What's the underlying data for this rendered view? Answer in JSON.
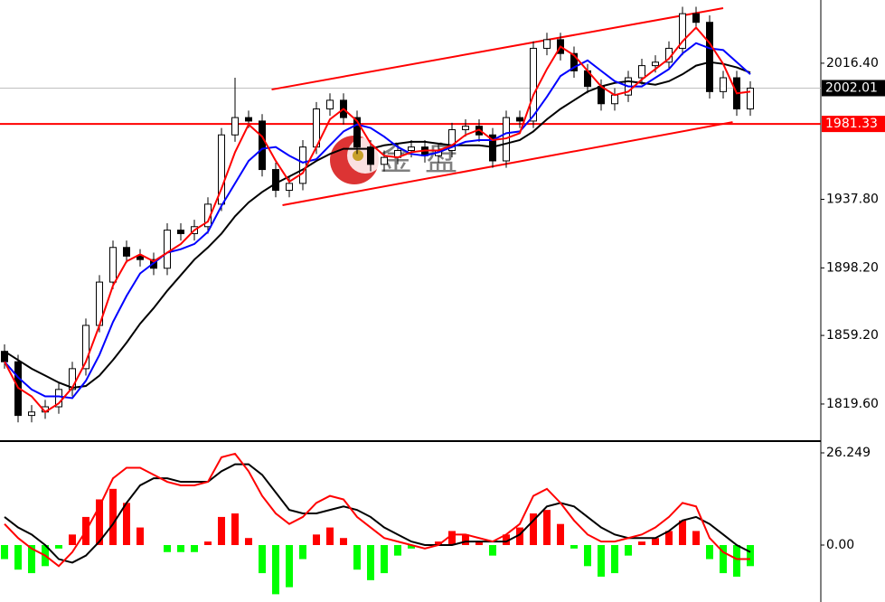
{
  "chart_data": [
    {
      "type": "candlestick",
      "open": [
        1850,
        1844,
        1813,
        1815,
        1818,
        1828,
        1840,
        1865,
        1890,
        1910,
        1905,
        1903,
        1898,
        1920,
        1918,
        1922,
        1935,
        1975,
        1985,
        1983,
        1955,
        1943,
        1947,
        1968,
        1990,
        1995,
        1985,
        1968,
        1958,
        1962,
        1966,
        1968,
        1963,
        1966,
        1978,
        1980,
        1975,
        1960,
        1985,
        1983,
        2025,
        2030,
        2022,
        2012,
        2003,
        1993,
        1998,
        2008,
        2015,
        2017,
        2025,
        2045,
        2040,
        2000,
        2008,
        1990
      ],
      "high": [
        1854,
        1848,
        1819,
        1822,
        1832,
        1844,
        1869,
        1894,
        1914,
        1914,
        1909,
        1907,
        1924,
        1924,
        1926,
        1939,
        1979,
        2008,
        1989,
        1987,
        1959,
        1951,
        1972,
        1994,
        1999,
        1999,
        1989,
        1972,
        1966,
        1970,
        1972,
        1972,
        1970,
        1982,
        1984,
        1984,
        1979,
        1989,
        1989,
        2029,
        2034,
        2034,
        2026,
        2016,
        2007,
        2002,
        2012,
        2019,
        2021,
        2029,
        2049,
        2049,
        2044,
        2012,
        2012,
        2006
      ],
      "low": [
        1840,
        1809,
        1809,
        1811,
        1814,
        1824,
        1836,
        1861,
        1886,
        1901,
        1899,
        1894,
        1894,
        1914,
        1914,
        1918,
        1931,
        1971,
        1979,
        1951,
        1939,
        1939,
        1943,
        1964,
        1986,
        1981,
        1964,
        1954,
        1954,
        1958,
        1962,
        1959,
        1959,
        1962,
        1974,
        1971,
        1956,
        1956,
        1979,
        1979,
        2021,
        2018,
        2008,
        1999,
        1989,
        1989,
        1994,
        2004,
        2011,
        2013,
        2021,
        2036,
        1996,
        1996,
        1986,
        1986
      ],
      "close": [
        1844,
        1813,
        1815,
        1818,
        1828,
        1840,
        1865,
        1890,
        1910,
        1905,
        1903,
        1898,
        1920,
        1918,
        1922,
        1935,
        1975,
        1985,
        1983,
        1955,
        1943,
        1947,
        1968,
        1990,
        1995,
        1985,
        1968,
        1958,
        1962,
        1966,
        1968,
        1963,
        1966,
        1978,
        1980,
        1975,
        1960,
        1985,
        1983,
        2025,
        2030,
        2022,
        2012,
        2003,
        1993,
        1998,
        2008,
        2015,
        2017,
        2025,
        2045,
        2040,
        2000,
        2008,
        1990,
        2002
      ],
      "up_color": "#ffffff",
      "down_color": "#000000",
      "series": [
        {
          "color": "#ff0000",
          "values": [
            1844,
            1829,
            1824,
            1815,
            1820,
            1829,
            1844,
            1865,
            1888,
            1902,
            1906,
            1902,
            1907,
            1912,
            1920,
            1925,
            1944,
            1965,
            1981,
            1974,
            1960,
            1948,
            1953,
            1968,
            1984,
            1990,
            1983,
            1970,
            1963,
            1962,
            1965,
            1966,
            1966,
            1969,
            1975,
            1978,
            1972,
            1973,
            1976,
            1998,
            2013,
            2026,
            2021,
            2012,
            2003,
            1998,
            2000,
            2007,
            2013,
            2019,
            2029,
            2037,
            2028,
            2016,
            1999,
            2000
          ]
        },
        {
          "color": "#0000ff",
          "values": [
            1844,
            1835,
            1828,
            1824,
            1824,
            1823,
            1833,
            1848,
            1867,
            1882,
            1895,
            1901,
            1907,
            1909,
            1912,
            1919,
            1934,
            1947,
            1960,
            1967,
            1968,
            1963,
            1959,
            1961,
            1969,
            1977,
            1981,
            1979,
            1974,
            1968,
            1964,
            1963,
            1965,
            1968,
            1971,
            1972,
            1972,
            1976,
            1977,
            1986,
            1997,
            2009,
            2014,
            2018,
            2012,
            2006,
            2003,
            2003,
            2008,
            2013,
            2022,
            2028,
            2025,
            2024,
            2017,
            2010
          ]
        },
        {
          "color": "#000000",
          "values": [
            1850,
            1845,
            1840,
            1836,
            1832,
            1829,
            1830,
            1836,
            1845,
            1855,
            1866,
            1875,
            1885,
            1894,
            1903,
            1910,
            1918,
            1928,
            1936,
            1942,
            1947,
            1951,
            1955,
            1960,
            1964,
            1967,
            1967,
            1967,
            1969,
            1970,
            1971,
            1971,
            1970,
            1969,
            1969,
            1969,
            1968,
            1970,
            1972,
            1977,
            1984,
            1990,
            1995,
            2000,
            2003,
            2005,
            2006,
            2005,
            2004,
            2006,
            2010,
            2015,
            2017,
            2016,
            2014,
            2011
          ]
        }
      ],
      "channels": [
        {
          "x": [
            19.7,
            53
          ],
          "y": [
            2001.2,
            2048.2
          ],
          "color": "#ff0000"
        },
        {
          "x": [
            20.5,
            53.7
          ],
          "y": [
            1934.4,
            1982.4
          ],
          "color": "#ff0000"
        }
      ],
      "price_lines": [
        {
          "value": 2002.01,
          "color": "#c0c0c0",
          "label_bg": "#000000"
        },
        {
          "value": 1981.33,
          "color": "#ff0000",
          "label_bg": "#ff0000"
        }
      ],
      "watermark": "金盘",
      "ylim": [
        1798.7,
        2052.9
      ],
      "yticks": [
        {
          "value": 2016.4,
          "label": "2016.40"
        },
        {
          "value": 1937.8,
          "label": "1937.80"
        },
        {
          "value": 1898.2,
          "label": "1898.20"
        },
        {
          "value": 1859.2,
          "label": "1859.20"
        },
        {
          "value": 1819.6,
          "label": "1819.60"
        }
      ]
    },
    {
      "type": "macd",
      "values": [
        -4,
        -7,
        -8,
        -6,
        -1,
        3,
        8,
        13,
        16,
        12,
        5,
        0,
        -2,
        -2,
        -2,
        1,
        8,
        9,
        2,
        -8,
        -14,
        -12,
        -4,
        3,
        5,
        2,
        -7,
        -10,
        -8,
        -3,
        -1,
        0,
        1,
        4,
        3,
        1,
        -3,
        3,
        5,
        9,
        10,
        6,
        -1,
        -6,
        -9,
        -8,
        -3,
        1,
        2,
        4,
        7,
        4,
        -4,
        -8,
        -9,
        -6
      ],
      "up_color": "#ff0000",
      "down_color": "#00ff00",
      "series": [
        {
          "color": "#ff0000",
          "values": [
            6,
            2,
            -1,
            -3,
            -6,
            -2,
            4,
            11,
            19,
            22,
            22,
            20,
            18,
            17,
            17,
            18,
            25,
            26,
            21,
            14,
            9,
            6,
            8,
            12,
            14,
            13,
            8,
            5,
            2,
            1,
            0,
            -1,
            0,
            3,
            3,
            2,
            1,
            3,
            6,
            14,
            16,
            12,
            7,
            3,
            1,
            1,
            2,
            3,
            5,
            8,
            12,
            11,
            2,
            -2,
            -4,
            -4
          ]
        },
        {
          "color": "#000000",
          "values": [
            8,
            5,
            3,
            0,
            -4,
            -5,
            -3,
            1,
            6,
            12,
            17,
            19,
            19,
            18,
            18,
            18,
            21,
            23,
            23,
            20,
            15,
            10,
            9,
            9,
            10,
            11,
            10,
            8,
            5,
            3,
            1,
            0,
            0,
            0,
            1,
            1,
            1,
            1,
            3,
            7,
            11,
            12,
            11,
            8,
            5,
            3,
            2,
            2,
            2,
            4,
            7,
            8,
            6,
            3,
            0,
            -2
          ]
        }
      ],
      "ylim": [
        -14.67,
        29.08
      ],
      "yticks": [
        26.249,
        {
          "value": 0,
          "label": "0.00"
        }
      ]
    }
  ]
}
